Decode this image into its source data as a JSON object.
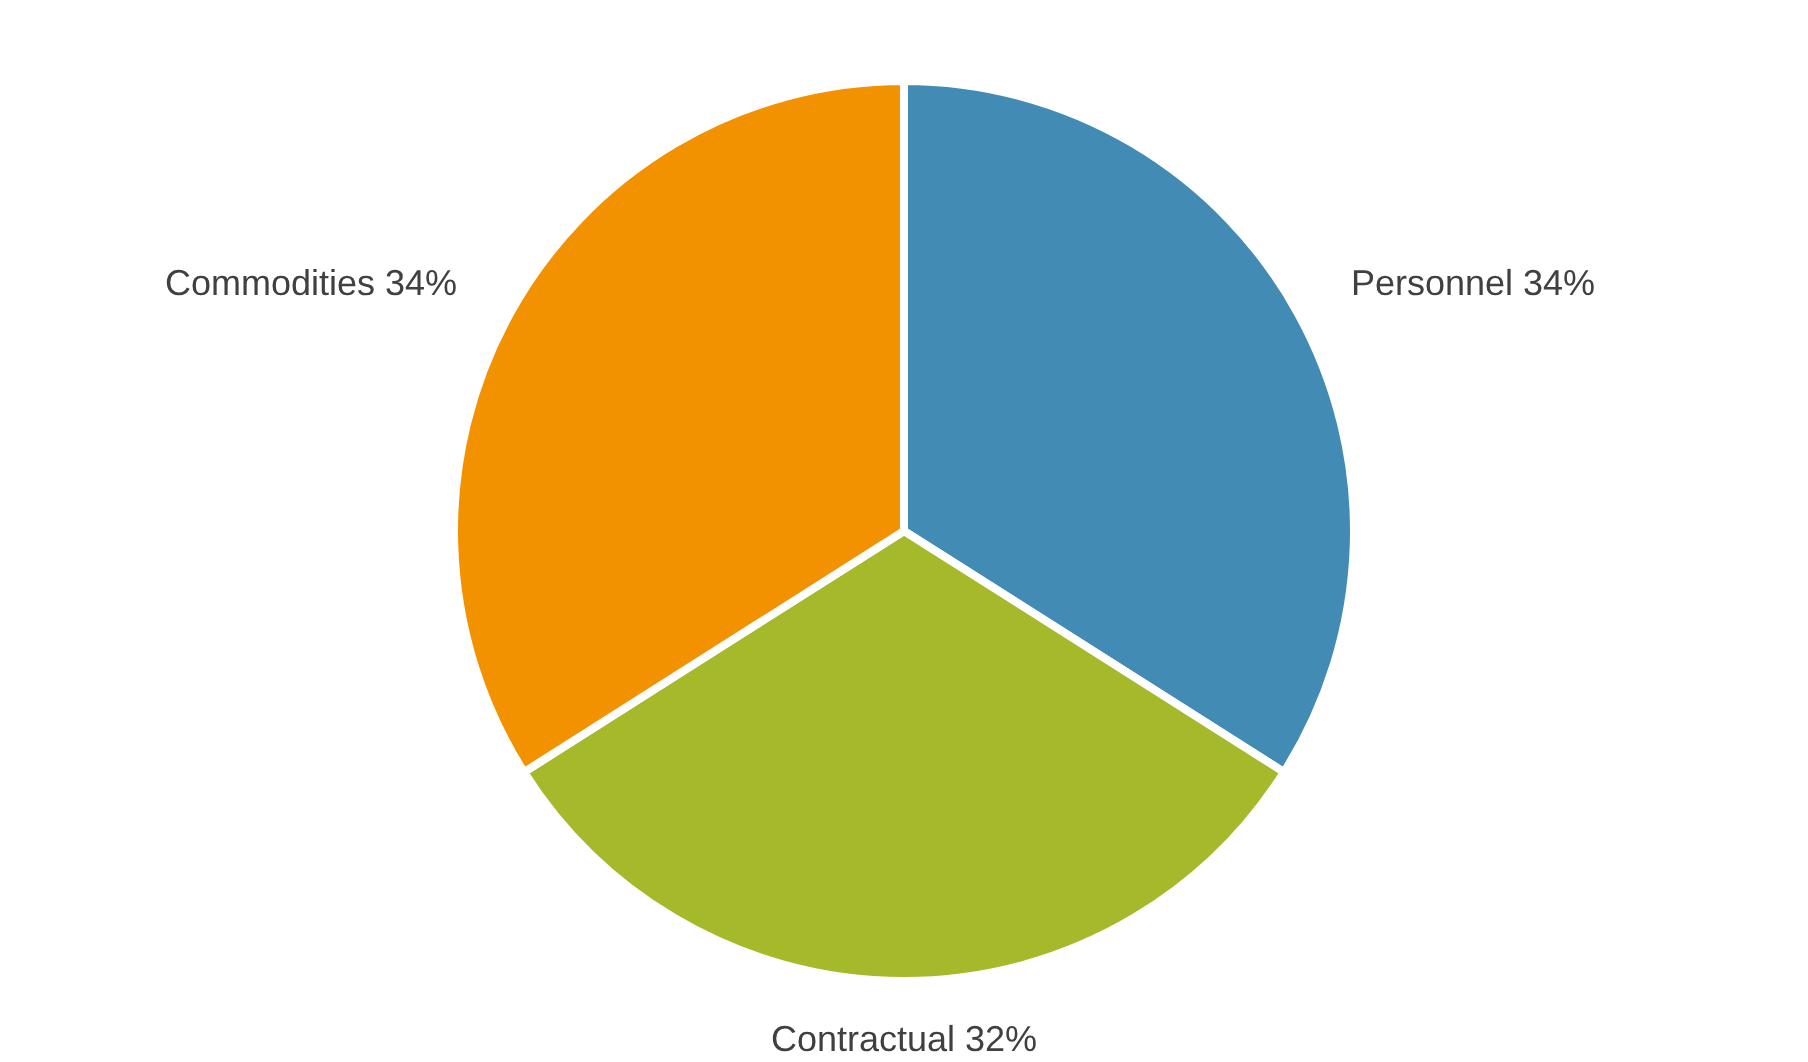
{
  "chart_data": {
    "type": "pie",
    "categories": [
      "Personnel",
      "Contractual",
      "Commodities"
    ],
    "values": [
      34,
      32,
      34
    ],
    "colors": [
      "#428bb5",
      "#a5b92a",
      "#f39200"
    ],
    "value_labels": [
      "34%",
      "32%",
      "34%"
    ]
  }
}
